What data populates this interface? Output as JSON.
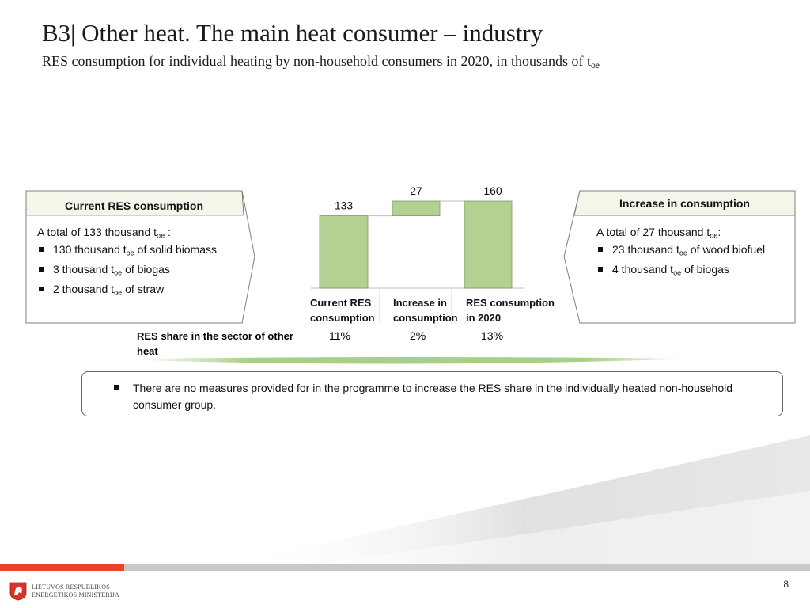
{
  "title": "B3| Other heat. The main heat consumer – industry",
  "subtitle": "RES consumption for individual heating by non-household consumers in 2020, in thousands of t",
  "subtitle_sub": "oe",
  "left_panel": {
    "heading": "Current RES consumption",
    "lead": "A total of 133 thousand t",
    "lead_sub": "oe",
    "lead_tail": " :",
    "items": [
      {
        "pre": "130 thousand t",
        "sub": "oe",
        "post": " of solid biomass"
      },
      {
        "pre": "3 thousand t",
        "sub": "oe",
        "post": " of biogas"
      },
      {
        "pre": "2 thousand t",
        "sub": "oe",
        "post": "  of straw"
      }
    ]
  },
  "right_panel": {
    "heading": "Increase in consumption",
    "lead": "A total of 27 thousand t",
    "lead_sub": "oe",
    "lead_tail": ":",
    "items": [
      {
        "pre": "23 thousand t",
        "sub": "oe",
        "post": " of wood biofuel"
      },
      {
        "pre": "4 thousand t",
        "sub": "oe",
        "post": "  of biogas"
      }
    ]
  },
  "chart_data": {
    "type": "bar",
    "subtype": "waterfall",
    "categories": [
      "Current RES consumption",
      "Increase in consumption",
      "RES consumption in 2020"
    ],
    "values": [
      133,
      27,
      160
    ],
    "bases": [
      0,
      133,
      0
    ],
    "data_labels": [
      "133",
      "27",
      "160"
    ],
    "ylim": [
      0,
      175
    ],
    "grid": false,
    "bar_color": "#b3d193",
    "bar_border": "#7a9a60"
  },
  "share_row": {
    "label": "RES share in the sector of other heat",
    "values": [
      "11%",
      "2%",
      "13%"
    ]
  },
  "note": "There are no measures provided for in the programme to increase the RES share in the individually heated non-household consumer group.",
  "footer": {
    "org_line1": "LIETUVOS RESPUBLIKOS",
    "org_line2": "ENERGETIKOS MINISTERIJA",
    "page_number": "8"
  },
  "colors": {
    "accent_red": "#e8412d",
    "panel_fill": "#f2f7ea",
    "swoosh_green": "#a8cf88"
  }
}
